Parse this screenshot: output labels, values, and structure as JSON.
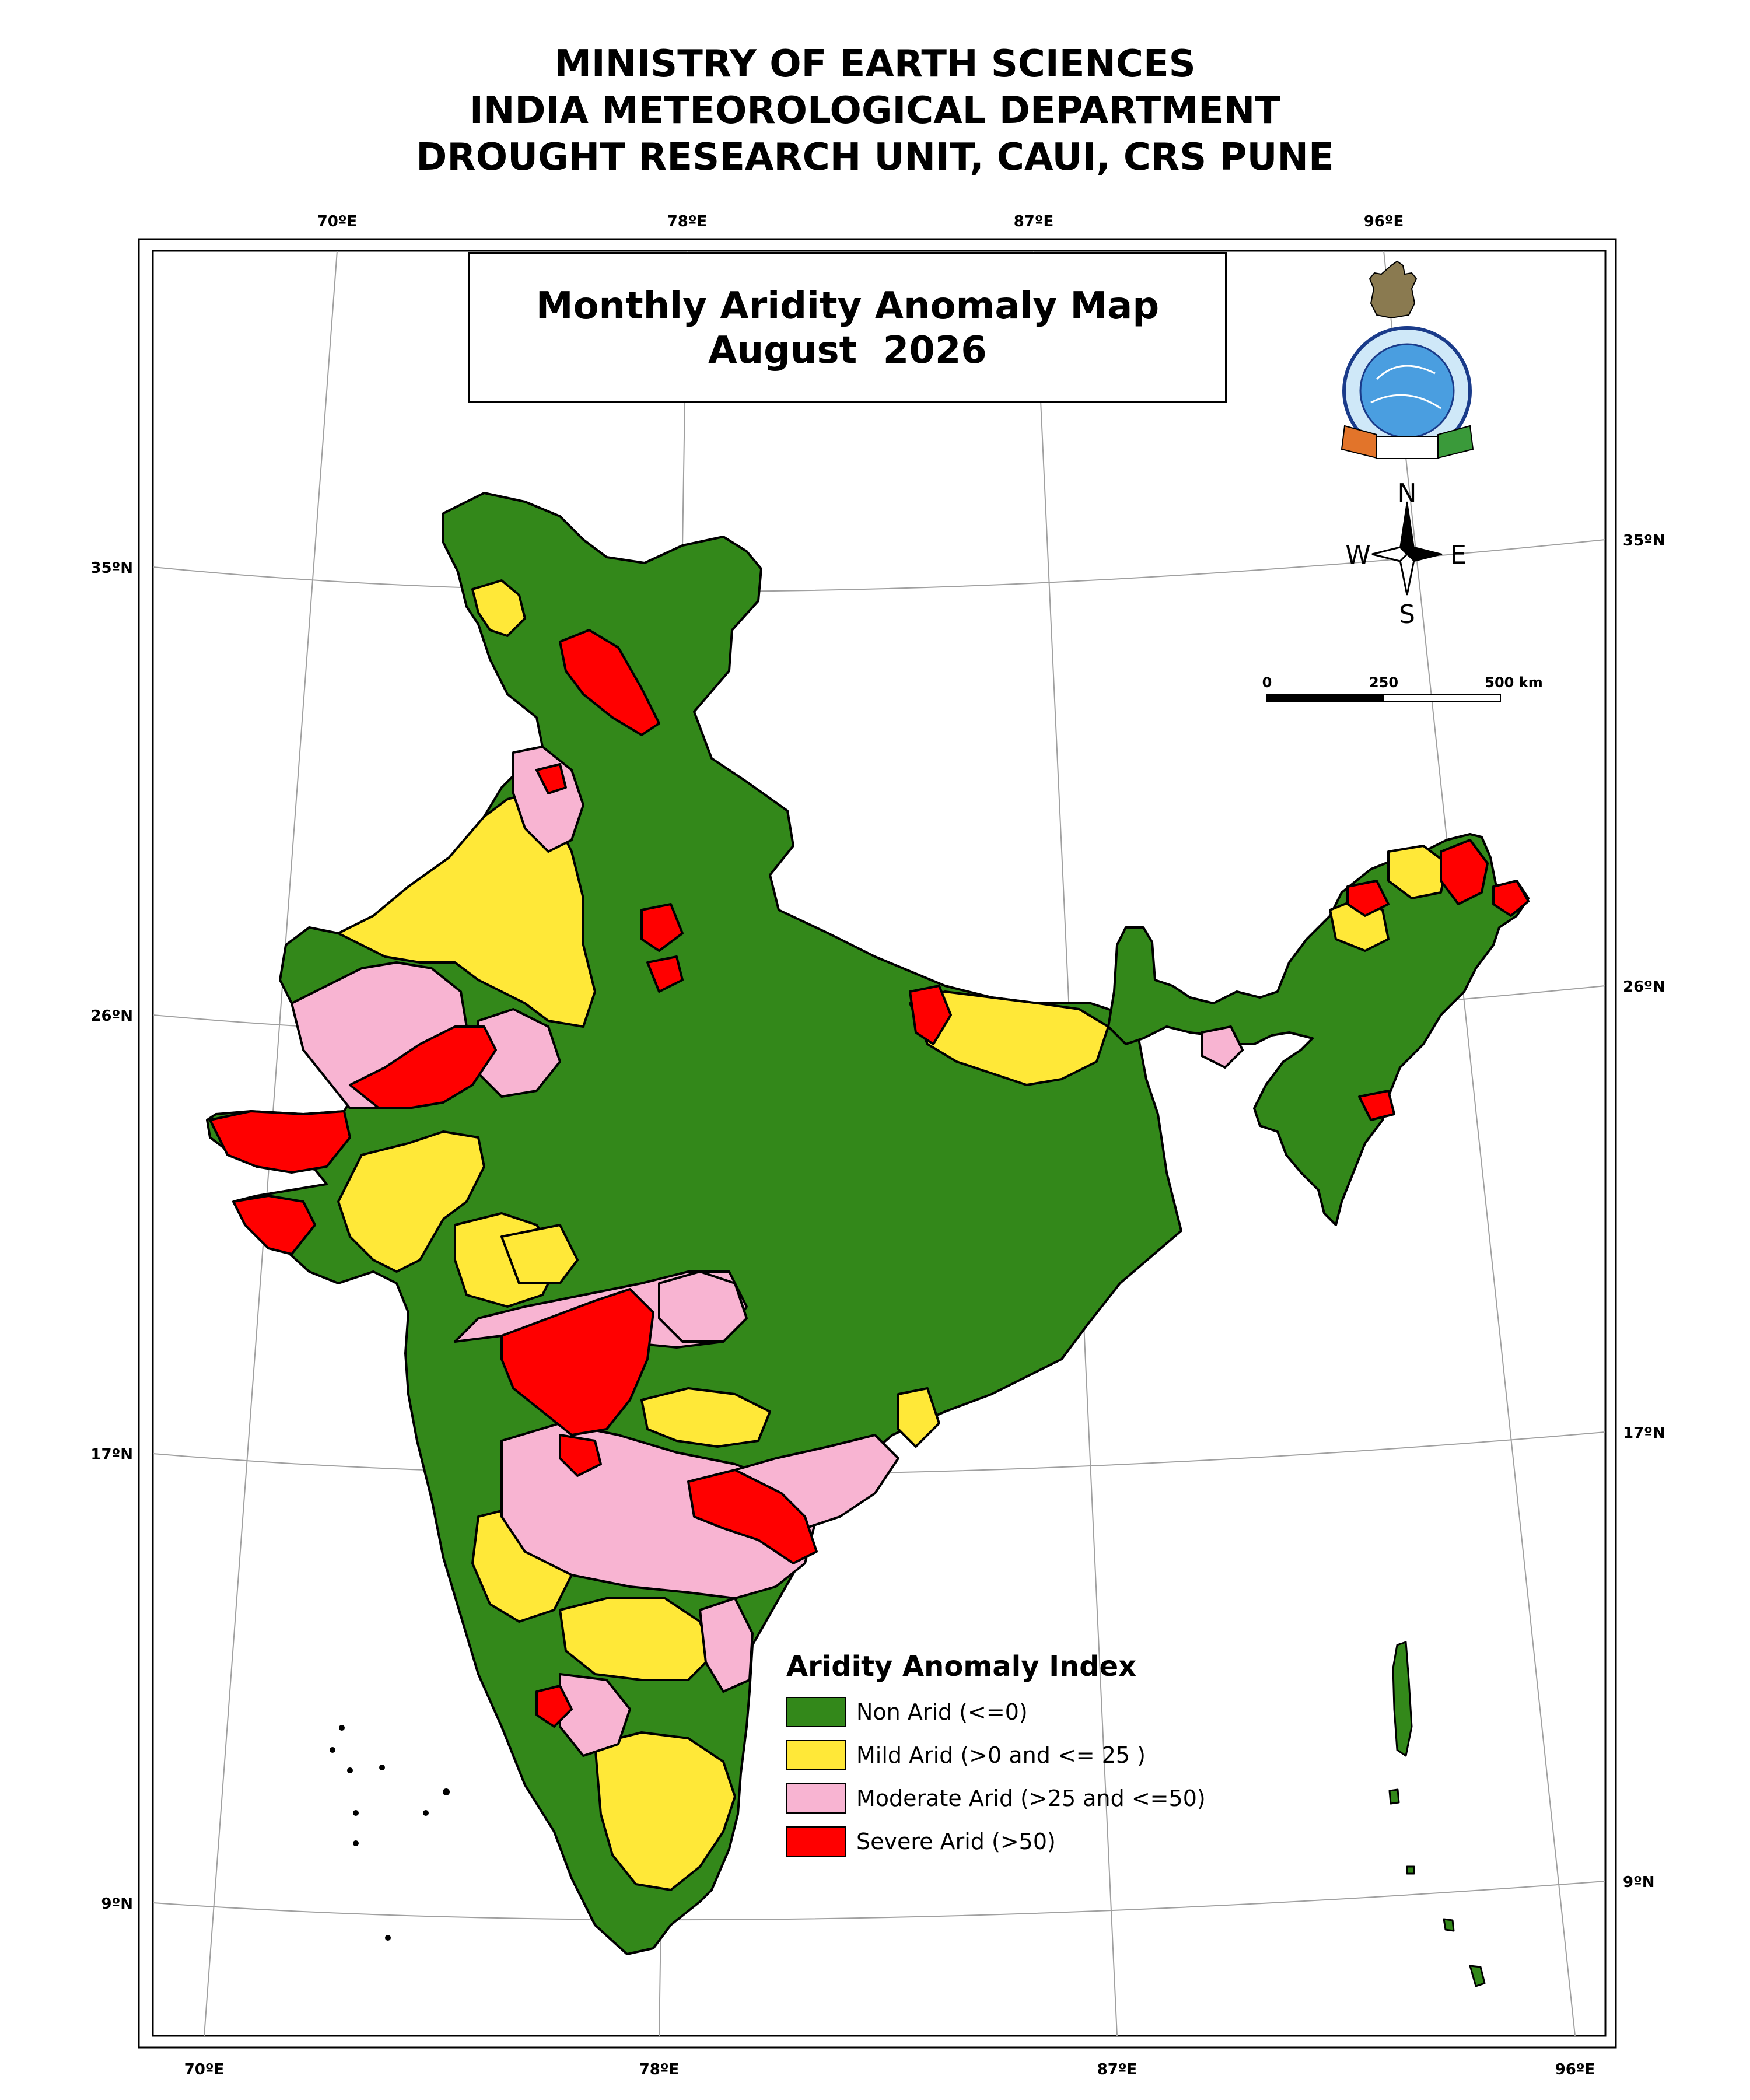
{
  "header": {
    "line1": "MINISTRY OF EARTH SCIENCES",
    "line2": "INDIA METEOROLOGICAL DEPARTMENT",
    "line3": "DROUGHT RESEARCH UNIT, CAUI, CRS PUNE"
  },
  "map": {
    "title": "Monthly Aridity Anomaly Map",
    "period": "August  2026"
  },
  "graticule": {
    "top_lon": [
      "70ºE",
      "78ºE",
      "87ºE",
      "96ºE"
    ],
    "bottom_lon": [
      "70ºE",
      "78ºE",
      "87ºE",
      "96ºE"
    ],
    "left_lat": [
      "35ºN",
      "26ºN",
      "17ºN",
      "9ºN"
    ],
    "right_lat": [
      "35ºN",
      "26ºN",
      "17ºN",
      "9ºN"
    ]
  },
  "compass": {
    "n": "N",
    "e": "E",
    "s": "S",
    "w": "W"
  },
  "scale_bar": {
    "labels": [
      "0",
      "250",
      "500 km"
    ]
  },
  "legend": {
    "title": "Aridity Anomaly Index",
    "items": [
      {
        "label": "Non Arid (<=0)",
        "color": "#33881a"
      },
      {
        "label": "Mild Arid (>0 and <= 25 )",
        "color": "#ffe838"
      },
      {
        "label": "Moderate Arid (>25 and <=50)",
        "color": "#f8b4d2"
      },
      {
        "label": "Severe Arid (>50)",
        "color": "#ff0000"
      }
    ]
  },
  "logo": {
    "name": "india-meteorological-department-emblem",
    "text": "INDIA METEOROLOGICAL DEPARTMENT"
  }
}
